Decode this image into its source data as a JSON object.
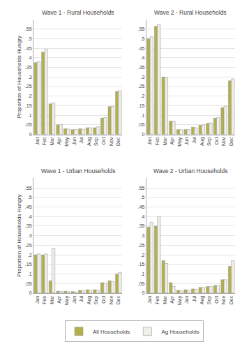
{
  "chart_data": [
    {
      "type": "bar",
      "title": "Wave 1 - Rural Households",
      "categories": [
        "Jan",
        "Feb",
        "Mar",
        "Apr",
        "May",
        "Jun",
        "Jul",
        "Aug",
        "Sep",
        "Oct",
        "Nov",
        "Dec"
      ],
      "series": [
        {
          "name": "All Households",
          "color": "#b5b04a",
          "values": [
            0.375,
            0.43,
            0.16,
            0.05,
            0.03,
            0.025,
            0.03,
            0.035,
            0.035,
            0.085,
            0.145,
            0.225
          ]
        },
        {
          "name": "Ag Households",
          "color": "#f0f0e8",
          "values": [
            0.38,
            0.445,
            0.165,
            0.052,
            0.028,
            0.026,
            0.028,
            0.035,
            0.04,
            0.088,
            0.148,
            0.228
          ]
        }
      ],
      "ylabel": "Proportion of Households Hungry",
      "ylim": [
        0,
        0.6
      ],
      "yticks": [
        0,
        {
          "value": 0.05,
          "label": ".05"
        },
        {
          "value": 0.1,
          "label": ".1"
        },
        {
          "value": 0.15,
          "label": ".15"
        },
        {
          "value": 0.2,
          "label": ".2"
        },
        {
          "value": 0.25,
          "label": ".25"
        },
        {
          "value": 0.3,
          "label": ".3"
        },
        {
          "value": 0.35,
          "label": ".35"
        },
        {
          "value": 0.4,
          "label": ".4"
        },
        {
          "value": 0.45,
          "label": ".45"
        },
        {
          "value": 0.5,
          "label": ".5"
        },
        {
          "value": 0.55,
          "label": ".55"
        }
      ],
      "grid": true,
      "legend": "bottom"
    },
    {
      "type": "bar",
      "title": "Wave 2 - Rural Households",
      "categories": [
        "Jan",
        "Feb",
        "Mar",
        "Apr",
        "May",
        "Jun",
        "Jul",
        "Aug",
        "Sep",
        "Oct",
        "Nov",
        "Dec"
      ],
      "series": [
        {
          "name": "All Households",
          "color": "#b5b04a",
          "values": [
            0.5,
            0.565,
            0.3,
            0.07,
            0.025,
            0.025,
            0.038,
            0.048,
            0.058,
            0.085,
            0.14,
            0.28
          ]
        },
        {
          "name": "Ag Households",
          "color": "#f0f0e8",
          "values": [
            0.51,
            0.575,
            0.298,
            0.07,
            0.025,
            0.026,
            0.035,
            0.05,
            0.06,
            0.088,
            0.148,
            0.29
          ]
        }
      ],
      "ylim": [
        0,
        0.6
      ],
      "yticks": [
        0,
        {
          "value": 0.05,
          "label": ".05"
        },
        {
          "value": 0.1,
          "label": ".1"
        },
        {
          "value": 0.15,
          "label": ".15"
        },
        {
          "value": 0.2,
          "label": ".2"
        },
        {
          "value": 0.25,
          "label": ".25"
        },
        {
          "value": 0.3,
          "label": ".3"
        },
        {
          "value": 0.35,
          "label": ".35"
        },
        {
          "value": 0.4,
          "label": ".4"
        },
        {
          "value": 0.45,
          "label": ".45"
        },
        {
          "value": 0.5,
          "label": ".5"
        },
        {
          "value": 0.55,
          "label": ".55"
        }
      ],
      "grid": true,
      "legend": "bottom"
    },
    {
      "type": "bar",
      "title": "Wave 1 - Urban Households",
      "categories": [
        "Jan",
        "Feb",
        "Mar",
        "Apr",
        "May",
        "Jun",
        "Jul",
        "Aug",
        "Sep",
        "Oct",
        "Nov",
        "Dec"
      ],
      "series": [
        {
          "name": "All Households",
          "color": "#b5b04a",
          "values": [
            0.2,
            0.2,
            0.065,
            0.01,
            0.01,
            0.008,
            0.015,
            0.018,
            0.018,
            0.055,
            0.065,
            0.1
          ]
        },
        {
          "name": "Ag Households",
          "color": "#f0f0e8",
          "values": [
            0.205,
            0.205,
            0.235,
            0.01,
            0.008,
            0.007,
            0.013,
            0.016,
            0.015,
            0.052,
            0.06,
            0.108
          ]
        }
      ],
      "ylabel": "Proportion of Households Hungry",
      "ylim": [
        0,
        0.6
      ],
      "yticks": [
        0,
        {
          "value": 0.05,
          "label": ".05"
        },
        {
          "value": 0.1,
          "label": ".1"
        },
        {
          "value": 0.15,
          "label": ".15"
        },
        {
          "value": 0.2,
          "label": ".2"
        },
        {
          "value": 0.25,
          "label": ".25"
        },
        {
          "value": 0.3,
          "label": ".3"
        },
        {
          "value": 0.35,
          "label": ".35"
        },
        {
          "value": 0.4,
          "label": ".4"
        },
        {
          "value": 0.45,
          "label": ".45"
        },
        {
          "value": 0.5,
          "label": ".5"
        },
        {
          "value": 0.55,
          "label": ".55"
        }
      ],
      "grid": true,
      "legend": "bottom"
    },
    {
      "type": "bar",
      "title": "Wave 2 - Urban Households",
      "categories": [
        "Jan",
        "Feb",
        "Mar",
        "Apr",
        "May",
        "Jun",
        "Jul",
        "Aug",
        "Sep",
        "Oct",
        "Nov",
        "Dec"
      ],
      "series": [
        {
          "name": "All Households",
          "color": "#b5b04a",
          "values": [
            0.345,
            0.35,
            0.17,
            0.055,
            0.015,
            0.018,
            0.022,
            0.03,
            0.035,
            0.04,
            0.07,
            0.14
          ]
        },
        {
          "name": "Ag Households",
          "color": "#f0f0e8",
          "values": [
            0.37,
            0.4,
            0.155,
            0.035,
            0.013,
            0.015,
            0.02,
            0.03,
            0.035,
            0.04,
            0.07,
            0.17
          ]
        }
      ],
      "ylim": [
        0,
        0.6
      ],
      "yticks": [
        0,
        {
          "value": 0.05,
          "label": ".05"
        },
        {
          "value": 0.1,
          "label": ".1"
        },
        {
          "value": 0.15,
          "label": ".15"
        },
        {
          "value": 0.2,
          "label": ".2"
        },
        {
          "value": 0.25,
          "label": ".25"
        },
        {
          "value": 0.3,
          "label": ".3"
        },
        {
          "value": 0.35,
          "label": ".35"
        },
        {
          "value": 0.4,
          "label": ".4"
        },
        {
          "value": 0.45,
          "label": ".45"
        },
        {
          "value": 0.5,
          "label": ".5"
        },
        {
          "value": 0.55,
          "label": ".55"
        }
      ],
      "grid": true,
      "legend": "bottom"
    }
  ]
}
